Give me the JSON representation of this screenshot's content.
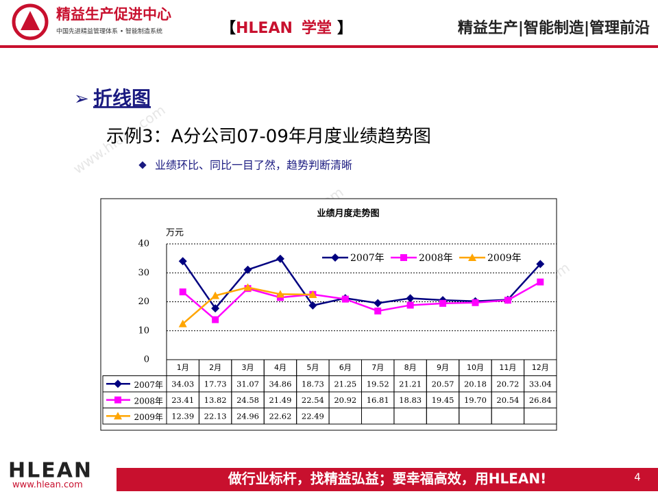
{
  "header": {
    "logo_title": "精益生产促进中心",
    "logo_subtitle": "中国先进精益管理体系 • 智能制造系统",
    "brand_left": "【",
    "brand": "HLEAN",
    "brand_school": "学堂",
    "brand_right": "】",
    "slogan": "精益生产|智能制造|管理前沿"
  },
  "watermark": "www.hlean.com",
  "slide": {
    "heading": "折线图",
    "subheading": "示例3：A分公司07-09年月度业绩趋势图",
    "bullet": "业绩环比、同比一目了然，趋势判断清晰"
  },
  "chart_data": {
    "type": "line",
    "title": "业绩月度走势图",
    "y_label": "万元",
    "categories": [
      "1月",
      "2月",
      "3月",
      "4月",
      "5月",
      "6月",
      "7月",
      "8月",
      "9月",
      "10月",
      "11月",
      "12月"
    ],
    "ylim": [
      0,
      40
    ],
    "yticks": [
      0,
      10,
      20,
      30,
      40
    ],
    "grid": true,
    "legend": "top-right",
    "series": [
      {
        "name": "2007年",
        "color": "#000080",
        "marker": "diamond",
        "values": [
          34.03,
          17.73,
          31.07,
          34.86,
          18.73,
          21.25,
          19.52,
          21.21,
          20.57,
          20.18,
          20.72,
          33.04
        ],
        "value_labels": [
          "34.03",
          "17.73",
          "31.07",
          "34.86",
          "18.73",
          "21.25",
          "19.52",
          "21.21",
          "20.57",
          "20.18",
          "20.72",
          "33.04"
        ]
      },
      {
        "name": "2008年",
        "color": "#ff00ff",
        "marker": "square",
        "values": [
          23.41,
          13.82,
          24.58,
          21.49,
          22.54,
          20.92,
          16.81,
          18.83,
          19.45,
          19.7,
          20.54,
          26.84
        ],
        "value_labels": [
          "23.41",
          "13.82",
          "24.58",
          "21.49",
          "22.54",
          "20.92",
          "16.81",
          "18.83",
          "19.45",
          "19.70",
          "20.54",
          "26.84"
        ]
      },
      {
        "name": "2009年",
        "color": "#ffa500",
        "marker": "triangle",
        "values": [
          12.39,
          22.13,
          24.96,
          22.62,
          22.49,
          null,
          null,
          null,
          null,
          null,
          null,
          null
        ],
        "value_labels": [
          "12.39",
          "22.13",
          "24.96",
          "22.62",
          "22.49",
          null,
          null,
          null,
          null,
          null,
          null,
          null
        ]
      }
    ]
  },
  "footer": {
    "brand": "HLEAN",
    "url": "www.hlean.com",
    "motto": "做行业标杆，找精益弘益；要幸福高效，用HLEAN!",
    "page": "4"
  }
}
